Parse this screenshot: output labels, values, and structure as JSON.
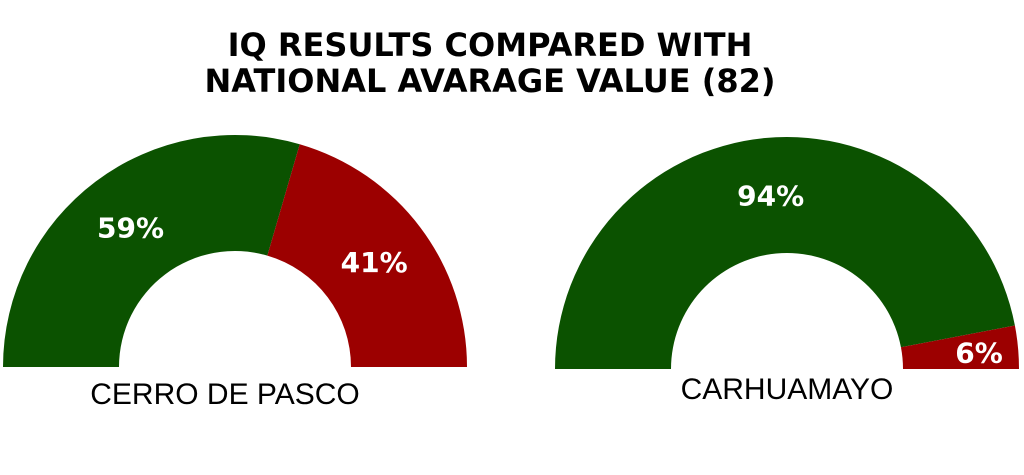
{
  "title_lines": [
    "IQ RESULTS COMPARED WITH",
    "NATIONAL AVARAGE VALUE (82)"
  ],
  "colors": {
    "above": "#0b5200",
    "below": "#9c0000"
  },
  "chart_data": {
    "type": "pie",
    "variant": "semicircle-donut",
    "title": "IQ RESULTS COMPARED WITH NATIONAL AVARAGE VALUE (82)",
    "charts": [
      {
        "category": "CERRO DE PASCO",
        "slices": [
          {
            "value": 59,
            "label": "59%",
            "color": "#0b5200"
          },
          {
            "value": 41,
            "label": "41%",
            "color": "#9c0000"
          }
        ]
      },
      {
        "category": "CARHUAMAYO",
        "slices": [
          {
            "value": 94,
            "label": "94%",
            "color": "#0b5200"
          },
          {
            "value": 6,
            "label": "6%",
            "color": "#9c0000"
          }
        ]
      }
    ]
  }
}
